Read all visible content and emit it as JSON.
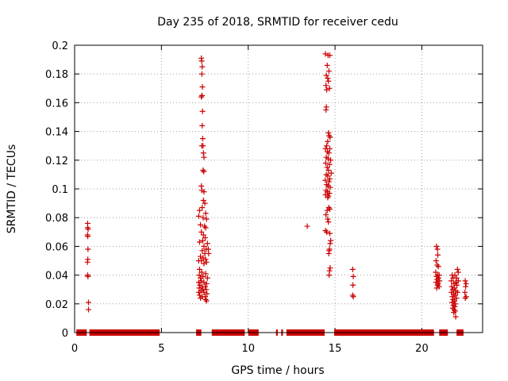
{
  "chart_data": {
    "type": "scatter",
    "title": "Day 235 of 2018, SRMTID for receiver cedu",
    "xlabel": "GPS time / hours",
    "ylabel": "SRMTID / TECUs",
    "xlim": [
      0,
      23.5
    ],
    "ylim": [
      0,
      0.2
    ],
    "xticks": [
      0,
      5,
      10,
      15,
      20
    ],
    "xtick_labels": [
      "0",
      "5",
      "10",
      "15",
      "20"
    ],
    "yticks": [
      0,
      0.02,
      0.04,
      0.06,
      0.08,
      0.1,
      0.12,
      0.14,
      0.16,
      0.18,
      0.2
    ],
    "ytick_labels": [
      "0",
      "0.02",
      "0.04",
      "0.06",
      "0.08",
      "0.1",
      "0.12",
      "0.14",
      "0.16",
      "0.18",
      "0.2"
    ],
    "grid": true,
    "marker": "+",
    "color": "#cc0000",
    "zero_intervals": [
      [
        0.1,
        0.7
      ],
      [
        0.85,
        4.9
      ],
      [
        7.0,
        7.3
      ],
      [
        7.9,
        9.8
      ],
      [
        10.0,
        10.6
      ],
      [
        11.6,
        11.7
      ],
      [
        11.9,
        12.0
      ],
      [
        12.2,
        14.4
      ],
      [
        14.95,
        20.7
      ],
      [
        21.0,
        21.5
      ],
      [
        22.0,
        22.4
      ]
    ],
    "points": [
      [
        0.75,
        0.076
      ],
      [
        0.75,
        0.073
      ],
      [
        0.78,
        0.072
      ],
      [
        0.74,
        0.068
      ],
      [
        0.76,
        0.067
      ],
      [
        0.77,
        0.058
      ],
      [
        0.76,
        0.051
      ],
      [
        0.74,
        0.049
      ],
      [
        0.75,
        0.04
      ],
      [
        0.77,
        0.039
      ],
      [
        0.8,
        0.021
      ],
      [
        0.8,
        0.016
      ],
      [
        7.3,
        0.191
      ],
      [
        7.32,
        0.189
      ],
      [
        7.35,
        0.185
      ],
      [
        7.33,
        0.18
      ],
      [
        7.36,
        0.171
      ],
      [
        7.34,
        0.165
      ],
      [
        7.3,
        0.164
      ],
      [
        7.37,
        0.154
      ],
      [
        7.35,
        0.144
      ],
      [
        7.38,
        0.135
      ],
      [
        7.33,
        0.13
      ],
      [
        7.4,
        0.13
      ],
      [
        7.42,
        0.125
      ],
      [
        7.45,
        0.122
      ],
      [
        7.4,
        0.113
      ],
      [
        7.44,
        0.112
      ],
      [
        7.3,
        0.102
      ],
      [
        7.33,
        0.099
      ],
      [
        7.45,
        0.098
      ],
      [
        7.42,
        0.092
      ],
      [
        7.5,
        0.09
      ],
      [
        7.35,
        0.087
      ],
      [
        7.2,
        0.085
      ],
      [
        7.15,
        0.081
      ],
      [
        7.4,
        0.08
      ],
      [
        7.55,
        0.083
      ],
      [
        7.6,
        0.079
      ],
      [
        7.25,
        0.075
      ],
      [
        7.48,
        0.074
      ],
      [
        7.55,
        0.073
      ],
      [
        7.3,
        0.07
      ],
      [
        7.42,
        0.068
      ],
      [
        7.52,
        0.066
      ],
      [
        7.38,
        0.064
      ],
      [
        7.2,
        0.063
      ],
      [
        7.65,
        0.062
      ],
      [
        7.45,
        0.06
      ],
      [
        7.58,
        0.058
      ],
      [
        7.7,
        0.058
      ],
      [
        7.35,
        0.057
      ],
      [
        7.5,
        0.055
      ],
      [
        7.72,
        0.055
      ],
      [
        7.25,
        0.053
      ],
      [
        7.4,
        0.052
      ],
      [
        7.55,
        0.051
      ],
      [
        7.15,
        0.05
      ],
      [
        7.3,
        0.05
      ],
      [
        7.6,
        0.049
      ],
      [
        7.45,
        0.048
      ],
      [
        7.2,
        0.044
      ],
      [
        7.32,
        0.042
      ],
      [
        7.55,
        0.041
      ],
      [
        7.18,
        0.04
      ],
      [
        7.4,
        0.039
      ],
      [
        7.25,
        0.038
      ],
      [
        7.65,
        0.038
      ],
      [
        7.3,
        0.036
      ],
      [
        7.15,
        0.035
      ],
      [
        7.45,
        0.035
      ],
      [
        7.6,
        0.034
      ],
      [
        7.22,
        0.033
      ],
      [
        7.35,
        0.032
      ],
      [
        7.52,
        0.032
      ],
      [
        7.18,
        0.031
      ],
      [
        7.4,
        0.03
      ],
      [
        7.58,
        0.03
      ],
      [
        7.28,
        0.029
      ],
      [
        7.15,
        0.028
      ],
      [
        7.45,
        0.028
      ],
      [
        7.62,
        0.027
      ],
      [
        7.2,
        0.026
      ],
      [
        7.35,
        0.025
      ],
      [
        7.52,
        0.025
      ],
      [
        7.25,
        0.024
      ],
      [
        7.55,
        0.023
      ],
      [
        7.6,
        0.022
      ],
      [
        14.45,
        0.194
      ],
      [
        14.6,
        0.193
      ],
      [
        14.7,
        0.193
      ],
      [
        14.55,
        0.186
      ],
      [
        14.65,
        0.182
      ],
      [
        14.5,
        0.179
      ],
      [
        14.58,
        0.177
      ],
      [
        14.62,
        0.175
      ],
      [
        14.48,
        0.172
      ],
      [
        14.52,
        0.169
      ],
      [
        14.68,
        0.17
      ],
      [
        14.5,
        0.157
      ],
      [
        14.48,
        0.155
      ],
      [
        14.62,
        0.139
      ],
      [
        14.66,
        0.137
      ],
      [
        14.72,
        0.136
      ],
      [
        14.58,
        0.133
      ],
      [
        14.52,
        0.13
      ],
      [
        14.45,
        0.128
      ],
      [
        14.7,
        0.128
      ],
      [
        14.56,
        0.126
      ],
      [
        14.64,
        0.125
      ],
      [
        14.5,
        0.122
      ],
      [
        14.6,
        0.121
      ],
      [
        14.75,
        0.12
      ],
      [
        14.46,
        0.118
      ],
      [
        14.68,
        0.117
      ],
      [
        14.55,
        0.115
      ],
      [
        14.62,
        0.113
      ],
      [
        14.78,
        0.111
      ],
      [
        14.5,
        0.11
      ],
      [
        14.58,
        0.109
      ],
      [
        14.7,
        0.107
      ],
      [
        14.44,
        0.106
      ],
      [
        14.65,
        0.105
      ],
      [
        14.52,
        0.103
      ],
      [
        14.6,
        0.102
      ],
      [
        14.72,
        0.101
      ],
      [
        14.48,
        0.099
      ],
      [
        14.56,
        0.098
      ],
      [
        14.68,
        0.097
      ],
      [
        14.45,
        0.096
      ],
      [
        14.62,
        0.095
      ],
      [
        14.58,
        0.094
      ],
      [
        14.64,
        0.087
      ],
      [
        14.7,
        0.086
      ],
      [
        14.55,
        0.085
      ],
      [
        14.48,
        0.082
      ],
      [
        14.58,
        0.079
      ],
      [
        14.62,
        0.077
      ],
      [
        14.45,
        0.071
      ],
      [
        14.52,
        0.07
      ],
      [
        14.7,
        0.069
      ],
      [
        14.75,
        0.064
      ],
      [
        14.72,
        0.062
      ],
      [
        14.68,
        0.058
      ],
      [
        14.66,
        0.057
      ],
      [
        14.64,
        0.055
      ],
      [
        14.72,
        0.045
      ],
      [
        14.68,
        0.043
      ],
      [
        14.66,
        0.04
      ],
      [
        13.4,
        0.074
      ],
      [
        16.02,
        0.044
      ],
      [
        16.05,
        0.039
      ],
      [
        16.03,
        0.033
      ],
      [
        16.02,
        0.026
      ],
      [
        16.05,
        0.025
      ],
      [
        20.85,
        0.06
      ],
      [
        20.9,
        0.058
      ],
      [
        20.92,
        0.054
      ],
      [
        20.82,
        0.05
      ],
      [
        20.88,
        0.047
      ],
      [
        20.95,
        0.046
      ],
      [
        20.8,
        0.042
      ],
      [
        20.92,
        0.04
      ],
      [
        21.0,
        0.04
      ],
      [
        20.85,
        0.039
      ],
      [
        20.96,
        0.038
      ],
      [
        20.88,
        0.037
      ],
      [
        21.02,
        0.036
      ],
      [
        20.82,
        0.035
      ],
      [
        20.94,
        0.034
      ],
      [
        20.9,
        0.033
      ],
      [
        21.0,
        0.032
      ],
      [
        20.86,
        0.031
      ],
      [
        21.75,
        0.04
      ],
      [
        21.9,
        0.04
      ],
      [
        22.05,
        0.044
      ],
      [
        22.1,
        0.042
      ],
      [
        21.8,
        0.038
      ],
      [
        22.0,
        0.038
      ],
      [
        21.7,
        0.036
      ],
      [
        21.95,
        0.035
      ],
      [
        22.1,
        0.036
      ],
      [
        21.85,
        0.034
      ],
      [
        21.72,
        0.032
      ],
      [
        22.02,
        0.033
      ],
      [
        21.88,
        0.031
      ],
      [
        21.78,
        0.03
      ],
      [
        21.96,
        0.029
      ],
      [
        21.7,
        0.028
      ],
      [
        22.06,
        0.028
      ],
      [
        21.84,
        0.027
      ],
      [
        21.92,
        0.026
      ],
      [
        21.76,
        0.025
      ],
      [
        22.0,
        0.024
      ],
      [
        21.8,
        0.023
      ],
      [
        21.88,
        0.022
      ],
      [
        21.74,
        0.021
      ],
      [
        21.94,
        0.02
      ],
      [
        21.82,
        0.019
      ],
      [
        21.9,
        0.018
      ],
      [
        21.78,
        0.017
      ],
      [
        21.86,
        0.016
      ],
      [
        21.92,
        0.015
      ],
      [
        21.84,
        0.014
      ],
      [
        21.95,
        0.011
      ],
      [
        22.5,
        0.036
      ],
      [
        22.55,
        0.034
      ],
      [
        22.52,
        0.032
      ],
      [
        22.48,
        0.028
      ],
      [
        22.55,
        0.025
      ],
      [
        22.5,
        0.024
      ]
    ]
  }
}
